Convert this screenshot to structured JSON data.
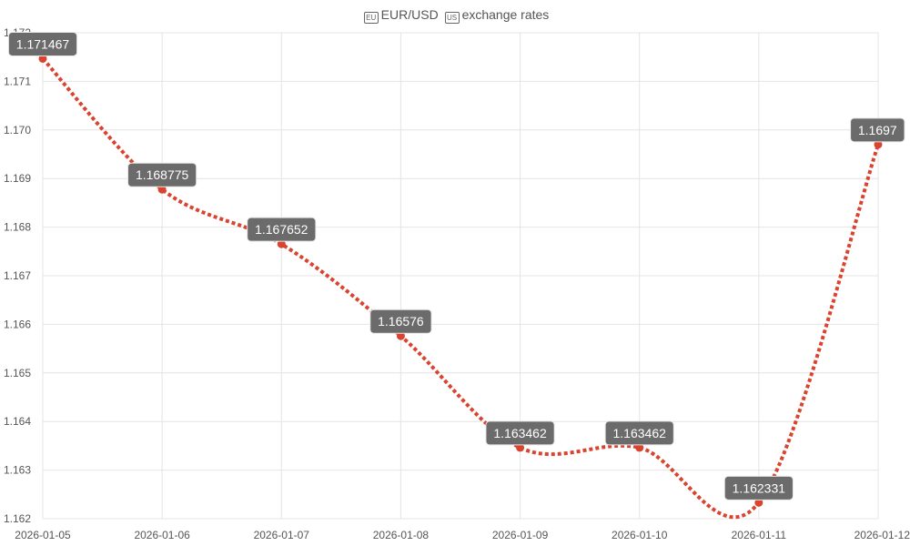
{
  "title": {
    "icon_left": "eu-flag-icon",
    "text_left": "EUR/USD",
    "icon_right": "us-flag-icon",
    "text_right": "exchange rates"
  },
  "colors": {
    "line": "#d9432f",
    "label_bg": "#6b6b6b",
    "grid": "#e4e4e4"
  },
  "chart_data": {
    "type": "line",
    "title": "EUR/USD exchange rates",
    "x": [
      "2026-01-05",
      "2026-01-06",
      "2026-01-07",
      "2026-01-08",
      "2026-01-09",
      "2026-01-10",
      "2026-01-11",
      "2026-01-12"
    ],
    "values": [
      1.171467,
      1.168775,
      1.167652,
      1.16576,
      1.163462,
      1.163462,
      1.162331,
      1.1697
    ],
    "data_labels": [
      "1.171467",
      "1.168775",
      "1.167652",
      "1.16576",
      "1.163462",
      "1.163462",
      "1.162331",
      "1.1697"
    ],
    "y_ticks": [
      "1.162",
      "1.163",
      "1.164",
      "1.165",
      "1.166",
      "1.167",
      "1.168",
      "1.169",
      "1.170",
      "1.171",
      "1.172"
    ],
    "ylim": [
      1.162,
      1.172
    ],
    "line_style": "dotted",
    "smooth": true,
    "grid": true
  }
}
